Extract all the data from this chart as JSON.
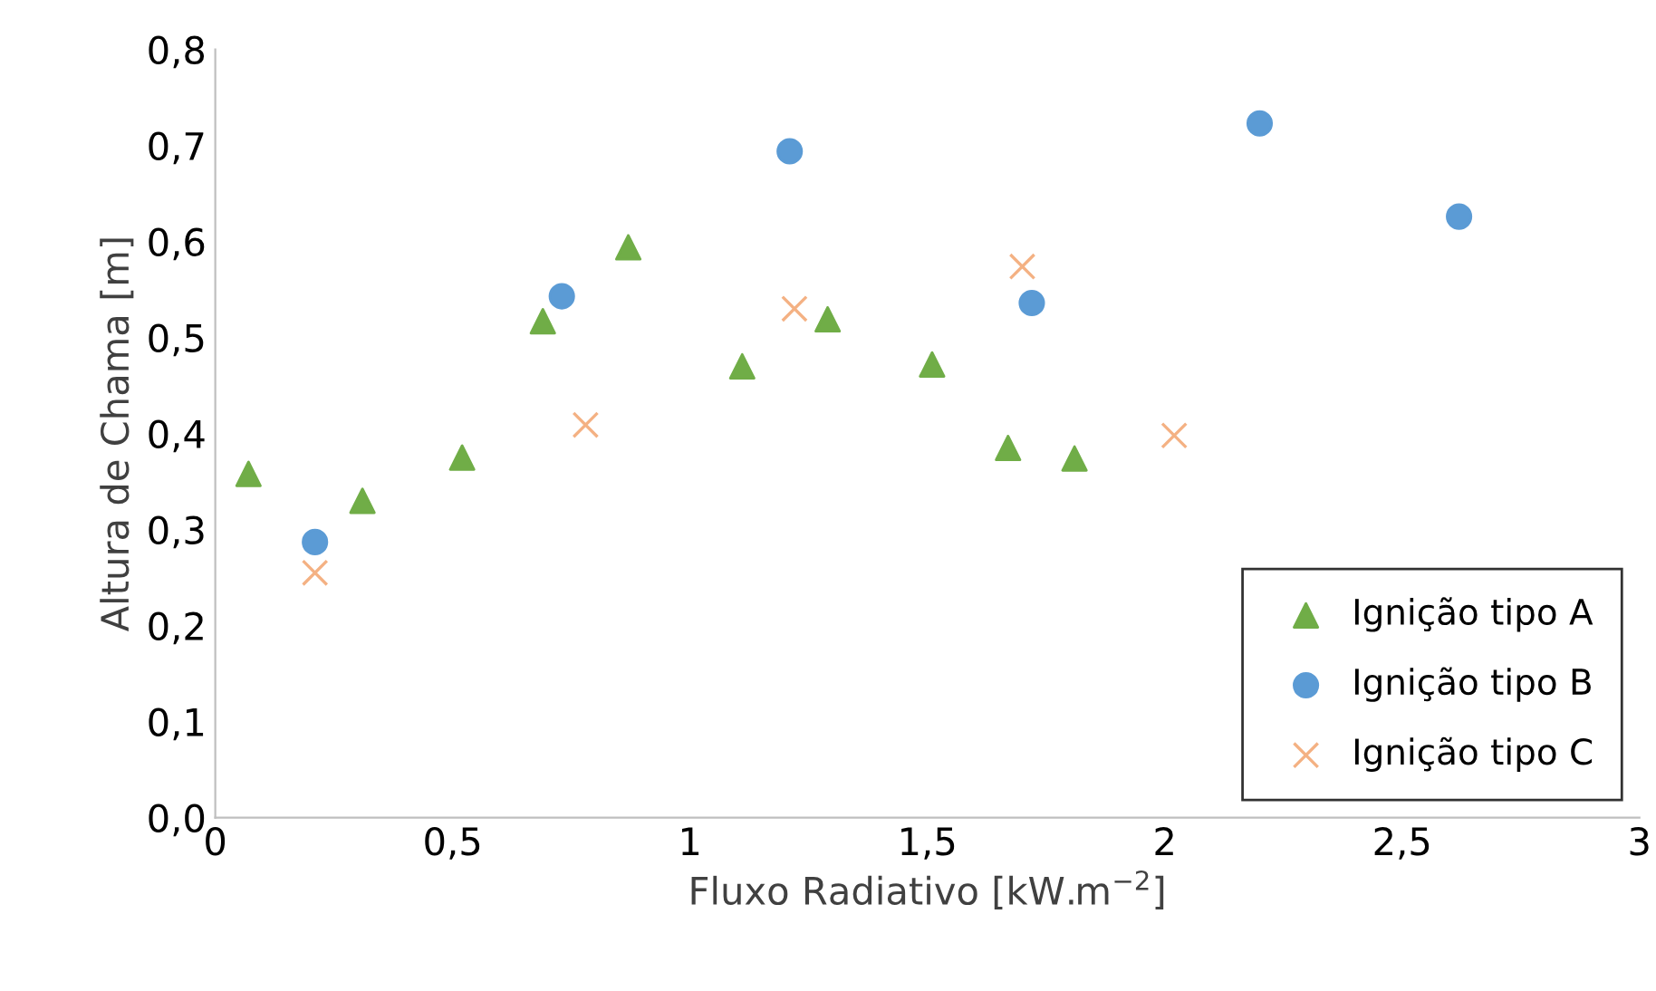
{
  "chart_data": {
    "type": "scatter",
    "xlabel": "Fluxo Radiativo [kW.m$^{−2}$]",
    "ylabel": "Altura de Chama [m]",
    "xlim": [
      0,
      3
    ],
    "xticks": [
      {
        "value": 0,
        "label": "0"
      },
      {
        "value": 0.5,
        "label": "0,5"
      },
      {
        "value": 1,
        "label": "1"
      },
      {
        "value": 1.5,
        "label": "1,5"
      },
      {
        "value": 2,
        "label": "2"
      },
      {
        "value": 2.5,
        "label": "2,5"
      },
      {
        "value": 3,
        "label": "3"
      }
    ],
    "ylim": [
      0,
      0.8
    ],
    "yticks": [
      {
        "value": 0,
        "label": "0,0"
      },
      {
        "value": 0.1,
        "label": "0,1"
      },
      {
        "value": 0.2,
        "label": "0,2"
      },
      {
        "value": 0.3,
        "label": "0,3"
      },
      {
        "value": 0.4,
        "label": "0,4"
      },
      {
        "value": 0.5,
        "label": "0,5"
      },
      {
        "value": 0.6,
        "label": "0,6"
      },
      {
        "value": 0.7,
        "label": "0,7"
      },
      {
        "value": 0.8,
        "label": "0,8"
      }
    ],
    "grid": false,
    "legend": "bottom right",
    "series": [
      {
        "name": "Ignição tipo A",
        "color": "#70ad47",
        "marker": "triangle",
        "x": [
          0.07,
          0.31,
          0.52,
          0.69,
          0.87,
          1.11,
          1.29,
          1.51,
          1.67,
          1.81
        ],
        "values": [
          0.358,
          0.33,
          0.375,
          0.517,
          0.594,
          0.47,
          0.519,
          0.472,
          0.385,
          0.374
        ]
      },
      {
        "name": "Ignição tipo B",
        "color": "#5b9bd5",
        "marker": "circle",
        "x": [
          0.21,
          0.73,
          1.21,
          1.72,
          2.2,
          2.62
        ],
        "values": [
          0.287,
          0.543,
          0.694,
          0.536,
          0.723,
          0.626
        ]
      },
      {
        "name": "Ignição tipo C",
        "color": "#f4b183",
        "marker": "cross",
        "x": [
          0.21,
          0.78,
          1.22,
          1.7,
          2.02
        ],
        "values": [
          0.255,
          0.409,
          0.53,
          0.574,
          0.398
        ]
      }
    ]
  }
}
